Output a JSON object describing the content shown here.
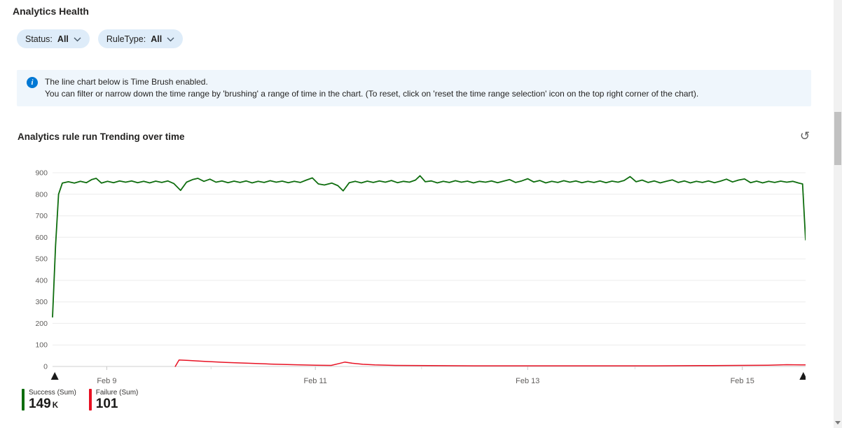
{
  "page": {
    "title": "Analytics Health"
  },
  "filters": [
    {
      "label": "Status:",
      "value": "All"
    },
    {
      "label": "RuleType:",
      "value": "All"
    }
  ],
  "info_banner": {
    "line1": "The line chart below is Time Brush enabled.",
    "line2": "You can filter or narrow down the time range by 'brushing' a range of time in the chart. (To reset, click on 'reset the time range selection' icon on the top right corner of the chart)."
  },
  "icons": {
    "info": "i",
    "reset_time_range": "↺"
  },
  "chart": {
    "title": "Analytics rule run Trending over time"
  },
  "chart_data": {
    "type": "line",
    "title": "Analytics rule run Trending over time",
    "ylim": [
      0,
      900
    ],
    "y_ticks": [
      0,
      100,
      200,
      300,
      400,
      500,
      600,
      700,
      800,
      900
    ],
    "x_ticks": [
      {
        "f": 0.072,
        "label": "Feb 9"
      },
      {
        "f": 0.349,
        "label": "Feb 11"
      },
      {
        "f": 0.631,
        "label": "Feb 13"
      },
      {
        "f": 0.916,
        "label": "Feb 15"
      }
    ],
    "x_minor_ticks": [
      0.2105,
      0.49,
      0.7735
    ],
    "grid": true,
    "legend_position": "bottom-left",
    "brush_handles": [
      0.003,
      0.997
    ],
    "series": [
      {
        "name": "Success (Sum)",
        "color": "#0e6d0e",
        "stroke_width": 1.8,
        "points": [
          [
            0.0,
            230
          ],
          [
            0.004,
            560
          ],
          [
            0.008,
            800
          ],
          [
            0.013,
            852
          ],
          [
            0.021,
            858
          ],
          [
            0.029,
            852
          ],
          [
            0.037,
            860
          ],
          [
            0.045,
            854
          ],
          [
            0.052,
            868
          ],
          [
            0.058,
            874
          ],
          [
            0.065,
            852
          ],
          [
            0.073,
            860
          ],
          [
            0.081,
            854
          ],
          [
            0.089,
            862
          ],
          [
            0.097,
            856
          ],
          [
            0.105,
            862
          ],
          [
            0.113,
            854
          ],
          [
            0.121,
            860
          ],
          [
            0.129,
            853
          ],
          [
            0.137,
            861
          ],
          [
            0.145,
            855
          ],
          [
            0.153,
            862
          ],
          [
            0.161,
            850
          ],
          [
            0.17,
            818
          ],
          [
            0.178,
            856
          ],
          [
            0.186,
            868
          ],
          [
            0.193,
            874
          ],
          [
            0.201,
            860
          ],
          [
            0.209,
            870
          ],
          [
            0.217,
            856
          ],
          [
            0.225,
            862
          ],
          [
            0.233,
            854
          ],
          [
            0.241,
            861
          ],
          [
            0.249,
            855
          ],
          [
            0.257,
            862
          ],
          [
            0.265,
            853
          ],
          [
            0.273,
            860
          ],
          [
            0.281,
            855
          ],
          [
            0.289,
            863
          ],
          [
            0.297,
            856
          ],
          [
            0.305,
            861
          ],
          [
            0.313,
            854
          ],
          [
            0.321,
            860
          ],
          [
            0.329,
            855
          ],
          [
            0.337,
            866
          ],
          [
            0.345,
            876
          ],
          [
            0.353,
            848
          ],
          [
            0.361,
            843
          ],
          [
            0.371,
            852
          ],
          [
            0.379,
            840
          ],
          [
            0.386,
            816
          ],
          [
            0.394,
            854
          ],
          [
            0.402,
            860
          ],
          [
            0.41,
            853
          ],
          [
            0.418,
            861
          ],
          [
            0.426,
            855
          ],
          [
            0.434,
            862
          ],
          [
            0.442,
            856
          ],
          [
            0.45,
            864
          ],
          [
            0.458,
            854
          ],
          [
            0.466,
            860
          ],
          [
            0.474,
            856
          ],
          [
            0.482,
            866
          ],
          [
            0.488,
            886
          ],
          [
            0.495,
            858
          ],
          [
            0.503,
            862
          ],
          [
            0.511,
            853
          ],
          [
            0.519,
            860
          ],
          [
            0.527,
            855
          ],
          [
            0.535,
            863
          ],
          [
            0.543,
            856
          ],
          [
            0.551,
            861
          ],
          [
            0.559,
            853
          ],
          [
            0.567,
            860
          ],
          [
            0.575,
            856
          ],
          [
            0.583,
            862
          ],
          [
            0.591,
            854
          ],
          [
            0.599,
            861
          ],
          [
            0.607,
            868
          ],
          [
            0.615,
            855
          ],
          [
            0.623,
            862
          ],
          [
            0.631,
            872
          ],
          [
            0.639,
            857
          ],
          [
            0.647,
            864
          ],
          [
            0.655,
            853
          ],
          [
            0.663,
            860
          ],
          [
            0.671,
            855
          ],
          [
            0.679,
            863
          ],
          [
            0.687,
            856
          ],
          [
            0.695,
            862
          ],
          [
            0.703,
            854
          ],
          [
            0.711,
            860
          ],
          [
            0.719,
            855
          ],
          [
            0.727,
            862
          ],
          [
            0.735,
            854
          ],
          [
            0.743,
            861
          ],
          [
            0.751,
            856
          ],
          [
            0.759,
            864
          ],
          [
            0.767,
            882
          ],
          [
            0.775,
            858
          ],
          [
            0.783,
            866
          ],
          [
            0.791,
            855
          ],
          [
            0.799,
            862
          ],
          [
            0.807,
            853
          ],
          [
            0.815,
            860
          ],
          [
            0.823,
            867
          ],
          [
            0.831,
            855
          ],
          [
            0.839,
            862
          ],
          [
            0.847,
            853
          ],
          [
            0.855,
            860
          ],
          [
            0.863,
            855
          ],
          [
            0.871,
            862
          ],
          [
            0.879,
            854
          ],
          [
            0.887,
            861
          ],
          [
            0.895,
            870
          ],
          [
            0.903,
            857
          ],
          [
            0.911,
            866
          ],
          [
            0.919,
            871
          ],
          [
            0.927,
            854
          ],
          [
            0.935,
            861
          ],
          [
            0.943,
            853
          ],
          [
            0.951,
            860
          ],
          [
            0.959,
            855
          ],
          [
            0.967,
            861
          ],
          [
            0.975,
            856
          ],
          [
            0.983,
            860
          ],
          [
            0.991,
            852
          ],
          [
            0.996,
            848
          ],
          [
            1.0,
            588
          ]
        ]
      },
      {
        "name": "Failure (Sum)",
        "color": "#e81123",
        "stroke_width": 1.5,
        "points": [
          [
            0.163,
            0
          ],
          [
            0.168,
            30
          ],
          [
            0.18,
            28
          ],
          [
            0.2,
            24
          ],
          [
            0.23,
            19
          ],
          [
            0.26,
            15
          ],
          [
            0.29,
            11
          ],
          [
            0.32,
            8
          ],
          [
            0.35,
            6
          ],
          [
            0.37,
            5
          ],
          [
            0.381,
            14
          ],
          [
            0.388,
            20
          ],
          [
            0.398,
            15
          ],
          [
            0.412,
            10
          ],
          [
            0.428,
            7
          ],
          [
            0.455,
            5
          ],
          [
            0.5,
            4
          ],
          [
            0.56,
            3
          ],
          [
            0.62,
            3
          ],
          [
            0.68,
            3
          ],
          [
            0.74,
            3
          ],
          [
            0.8,
            3
          ],
          [
            0.86,
            4
          ],
          [
            0.91,
            5
          ],
          [
            0.95,
            6
          ],
          [
            0.975,
            8
          ],
          [
            1.0,
            7
          ]
        ]
      }
    ]
  },
  "legend": [
    {
      "name": "Success (Sum)",
      "value": "149",
      "unit": "K"
    },
    {
      "name": "Failure (Sum)",
      "value": "101",
      "unit": ""
    }
  ]
}
